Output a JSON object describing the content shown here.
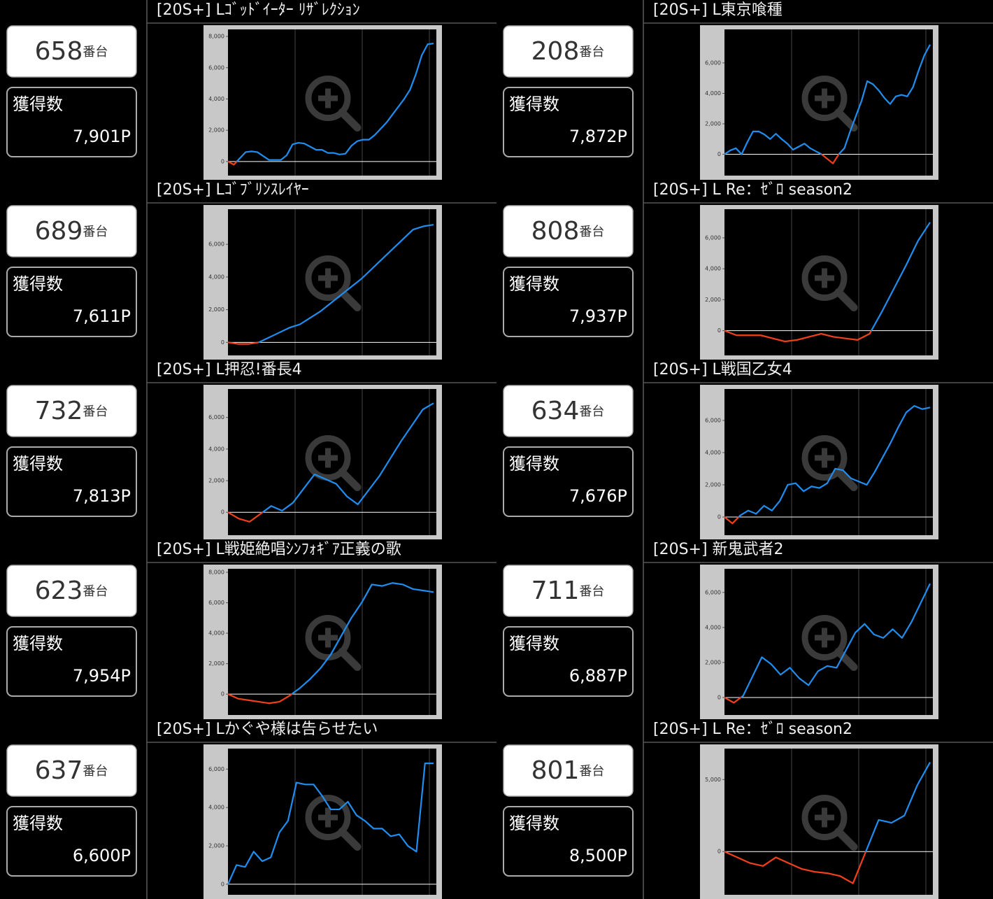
{
  "chart_style": {
    "positive_color": "#1f8ef1",
    "negative_color": "#f2401a",
    "zero_line_color": "#ffffff"
  },
  "units": [
    {
      "title": "[20S+] Lｺﾞｯﾄﾞｲｰﾀｰ ﾘｻﾞﾚｸｼｮﾝ",
      "machine_no": "658",
      "suffix": "番台",
      "count_label": "獲得数",
      "count": "7,901P",
      "chart": {
        "type": "line",
        "ylim": [
          -900,
          8450
        ],
        "yticks": [
          0,
          {
            "value": 2000,
            "label": "2,000"
          },
          {
            "value": 4000,
            "label": "4,000"
          },
          {
            "value": 6000,
            "label": "6,000"
          },
          {
            "value": 8000,
            "label": "8,000"
          }
        ],
        "values": [
          0,
          -200,
          200,
          600,
          650,
          600,
          350,
          100,
          100,
          100,
          400,
          1100,
          1200,
          1150,
          950,
          750,
          750,
          550,
          550,
          450,
          500,
          1000,
          1300,
          1400,
          1400,
          1700,
          2100,
          2500,
          3000,
          3500,
          4000,
          4600,
          5600,
          6800,
          7500,
          7550
        ]
      }
    },
    {
      "title": "[20S+] L東京喰種",
      "machine_no": "208",
      "suffix": "番台",
      "count_label": "獲得数",
      "count": "7,872P",
      "chart": {
        "type": "line",
        "ylim": [
          -1400,
          8200
        ],
        "yticks": [
          0,
          {
            "value": 2000,
            "label": "2,000"
          },
          {
            "value": 4000,
            "label": "4,000"
          },
          {
            "value": 6000,
            "label": "6,000"
          }
        ],
        "values": [
          0,
          250,
          400,
          0,
          800,
          1500,
          1500,
          1300,
          1000,
          1350,
          1000,
          700,
          300,
          500,
          700,
          400,
          200,
          0,
          -300,
          -600,
          0,
          400,
          1500,
          2500,
          3500,
          4800,
          4600,
          4200,
          3700,
          3300,
          3800,
          3900,
          3800,
          4400,
          5500,
          6500,
          7200
        ]
      }
    },
    {
      "title": "[20S+] Lｺﾞﾌﾞﾘﾝｽﾚｲﾔｰ",
      "machine_no": "689",
      "suffix": "番台",
      "count_label": "獲得数",
      "count": "7,611P",
      "chart": {
        "type": "line",
        "ylim": [
          -800,
          8150
        ],
        "yticks": [
          0,
          {
            "value": 2000,
            "label": "2,000"
          },
          {
            "value": 4000,
            "label": "4,000"
          },
          {
            "value": 6000,
            "label": "6,000"
          }
        ],
        "values": [
          0,
          -100,
          -100,
          0,
          300,
          600,
          900,
          1100,
          1500,
          1900,
          2400,
          2900,
          3400,
          3900,
          4500,
          5100,
          5700,
          6300,
          6900,
          7100,
          7200
        ]
      }
    },
    {
      "title": "[20S+] L Re：ｾﾞﾛ season2",
      "machine_no": "808",
      "suffix": "番台",
      "count_label": "獲得数",
      "count": "7,937P",
      "chart": {
        "type": "line",
        "ylim": [
          -1600,
          7850
        ],
        "yticks": [
          0,
          {
            "value": 2000,
            "label": "2,000"
          },
          {
            "value": 4000,
            "label": "4,000"
          },
          {
            "value": 6000,
            "label": "6,000"
          }
        ],
        "values": [
          0,
          -300,
          -300,
          -300,
          -500,
          -700,
          -600,
          -400,
          -200,
          -400,
          -500,
          -600,
          -200,
          1200,
          2700,
          4200,
          5800,
          7000
        ]
      }
    },
    {
      "title": "[20S+] L押忍!番長4",
      "machine_no": "732",
      "suffix": "番台",
      "count_label": "獲得数",
      "count": "7,813P",
      "chart": {
        "type": "line",
        "ylim": [
          -1450,
          7800
        ],
        "yticks": [
          0,
          {
            "value": 2000,
            "label": "2,000"
          },
          {
            "value": 4000,
            "label": "4,000"
          },
          {
            "value": 6000,
            "label": "6,000"
          }
        ],
        "values": [
          0,
          -400,
          -600,
          -100,
          400,
          100,
          600,
          1500,
          2400,
          2100,
          1800,
          1000,
          500,
          1400,
          2300,
          3400,
          4500,
          5500,
          6500,
          6900
        ]
      }
    },
    {
      "title": "[20S+] L戦国乙女4",
      "machine_no": "634",
      "suffix": "番台",
      "count_label": "獲得数",
      "count": "7,676P",
      "chart": {
        "type": "line",
        "ylim": [
          -1130,
          7950
        ],
        "yticks": [
          0,
          {
            "value": 2000,
            "label": "2,000"
          },
          {
            "value": 4000,
            "label": "4,000"
          },
          {
            "value": 6000,
            "label": "6,000"
          }
        ],
        "values": [
          0,
          -400,
          100,
          400,
          200,
          700,
          400,
          1000,
          2000,
          2100,
          1600,
          1900,
          1800,
          2100,
          3000,
          2900,
          2400,
          2200,
          2000,
          2800,
          3700,
          4600,
          5600,
          6500,
          6900,
          6700,
          6800
        ]
      }
    },
    {
      "title": "[20S+] L戦姫絶唱ｼﾝﾌｫｷﾞｱ正義の歌",
      "machine_no": "623",
      "suffix": "番台",
      "count_label": "獲得数",
      "count": "7,954P",
      "chart": {
        "type": "line",
        "ylim": [
          -1370,
          8230
        ],
        "yticks": [
          0,
          {
            "value": 2000,
            "label": "2,000"
          },
          {
            "value": 4000,
            "label": "4,000"
          },
          {
            "value": 6000,
            "label": "6,000"
          },
          {
            "value": 8000,
            "label": "8,000"
          }
        ],
        "values": [
          0,
          -300,
          -400,
          -500,
          -600,
          -500,
          -100,
          400,
          1000,
          1700,
          2600,
          3800,
          5000,
          6000,
          7200,
          7100,
          7300,
          7200,
          6900,
          6800,
          6700
        ]
      }
    },
    {
      "title": "[20S+] 新鬼武者2",
      "machine_no": "711",
      "suffix": "番台",
      "count_label": "獲得数",
      "count": "6,887P",
      "chart": {
        "type": "line",
        "ylim": [
          -1000,
          7350
        ],
        "yticks": [
          0,
          {
            "value": 2000,
            "label": "2,000"
          },
          {
            "value": 4000,
            "label": "4,000"
          },
          {
            "value": 6000,
            "label": "6,000"
          }
        ],
        "values": [
          0,
          -300,
          100,
          1200,
          2300,
          1900,
          1300,
          1700,
          1100,
          700,
          1500,
          1800,
          1700,
          2700,
          3700,
          4200,
          3600,
          3400,
          3900,
          3400,
          4300,
          5400,
          6500
        ]
      }
    },
    {
      "title": "[20S+] Lかぐや様は告らせたい",
      "machine_no": "637",
      "suffix": "番台",
      "count_label": "獲得数",
      "count": "6,600P",
      "chart": {
        "type": "line",
        "ylim": [
          -550,
          7070
        ],
        "yticks": [
          0,
          {
            "value": 2000,
            "label": "2,000"
          },
          {
            "value": 4000,
            "label": "4,000"
          },
          {
            "value": 6000,
            "label": "6,000"
          }
        ],
        "values": [
          0,
          1000,
          900,
          1700,
          1200,
          1400,
          2700,
          3300,
          5300,
          5200,
          5200,
          4600,
          3900,
          3900,
          4300,
          3600,
          3300,
          2900,
          2900,
          2500,
          2600,
          2000,
          1700,
          6300,
          6300
        ]
      }
    },
    {
      "title": "[20S+] L Re：ｾﾞﾛ season2",
      "machine_no": "801",
      "suffix": "番台",
      "count_label": "獲得数",
      "count": "8,500P",
      "chart": {
        "type": "line",
        "ylim": [
          -3000,
          7150
        ],
        "yticks": [
          0,
          {
            "value": 5000,
            "label": "5,000"
          }
        ],
        "values": [
          0,
          -400,
          -800,
          -1000,
          -400,
          -800,
          -1200,
          -1400,
          -1500,
          -1700,
          -2200,
          0,
          2200,
          2000,
          2500,
          4600,
          6200
        ]
      }
    }
  ]
}
